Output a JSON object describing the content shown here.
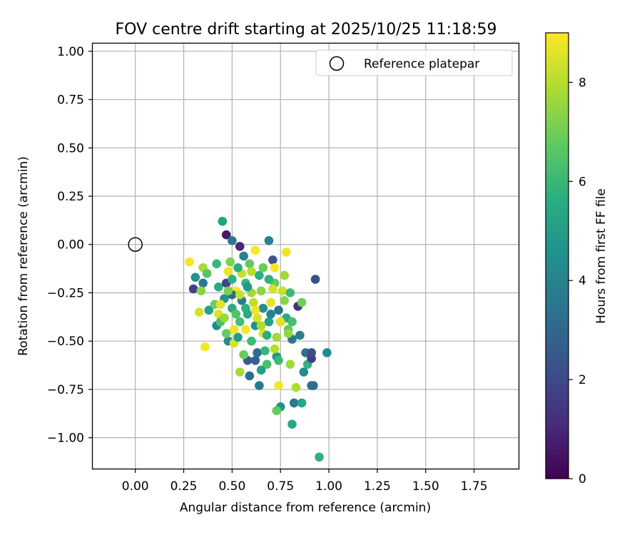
{
  "chart_data": {
    "type": "scatter",
    "title": "FOV centre drift starting at 2025/10/25 11:18:59",
    "xlabel": "Angular distance from reference (arcmin)",
    "ylabel": "Rotation from reference (arcmin)",
    "xlim": [
      -0.22,
      1.98
    ],
    "ylim": [
      -1.16,
      1.04
    ],
    "xticks": [
      0.0,
      0.25,
      0.5,
      0.75,
      1.0,
      1.25,
      1.5,
      1.75
    ],
    "xtick_labels": [
      "0.00",
      "0.25",
      "0.50",
      "0.75",
      "1.00",
      "1.25",
      "1.50",
      "1.75"
    ],
    "yticks": [
      1.0,
      0.75,
      0.5,
      0.25,
      0.0,
      -0.25,
      -0.5,
      -0.75,
      -1.0
    ],
    "ytick_labels": [
      "1.00",
      "0.75",
      "0.50",
      "0.25",
      "0.00",
      "−0.25",
      "−0.50",
      "−0.75",
      "−1.00"
    ],
    "grid": true,
    "legend": {
      "location": "top-right",
      "entries": [
        {
          "label": "Reference platepar",
          "marker": "open-circle"
        }
      ]
    },
    "reference_point": {
      "x": 0.0,
      "y": 0.0
    },
    "colorbar": {
      "label": "Hours from first FF file",
      "range": [
        0,
        9
      ],
      "ticks": [
        0,
        2,
        4,
        6,
        8
      ],
      "tick_labels": [
        "0",
        "2",
        "4",
        "6",
        "8"
      ],
      "colormap": "viridis"
    },
    "points": [
      [
        0.45,
        0.12,
        5.2
      ],
      [
        0.47,
        0.05,
        0.6
      ],
      [
        0.5,
        0.02,
        3.6
      ],
      [
        0.54,
        -0.01,
        1.0
      ],
      [
        0.69,
        0.02,
        4.0
      ],
      [
        0.93,
        -0.18,
        2.2
      ],
      [
        0.78,
        -0.04,
        8.8
      ],
      [
        0.62,
        -0.03,
        8.9
      ],
      [
        0.28,
        -0.09,
        8.9
      ],
      [
        0.3,
        -0.23,
        1.8
      ],
      [
        0.31,
        -0.17,
        4.6
      ],
      [
        0.35,
        -0.12,
        7.8
      ],
      [
        0.37,
        -0.15,
        6.6
      ],
      [
        0.35,
        -0.2,
        3.6
      ],
      [
        0.34,
        -0.24,
        7.4
      ],
      [
        0.33,
        -0.35,
        8.4
      ],
      [
        0.38,
        -0.34,
        5.2
      ],
      [
        0.36,
        -0.53,
        8.9
      ],
      [
        0.42,
        -0.1,
        6.0
      ],
      [
        0.43,
        -0.22,
        5.5
      ],
      [
        0.41,
        -0.31,
        7.0
      ],
      [
        0.43,
        -0.36,
        8.5
      ],
      [
        0.42,
        -0.42,
        4.2
      ],
      [
        0.44,
        -0.4,
        6.4
      ],
      [
        0.46,
        -0.28,
        4.6
      ],
      [
        0.47,
        -0.2,
        1.8
      ],
      [
        0.48,
        -0.14,
        8.8
      ],
      [
        0.49,
        -0.09,
        7.2
      ],
      [
        0.5,
        -0.18,
        5.8
      ],
      [
        0.48,
        -0.5,
        4.2
      ],
      [
        0.5,
        -0.33,
        5.5
      ],
      [
        0.51,
        -0.51,
        8.5
      ],
      [
        0.52,
        -0.24,
        8.9
      ],
      [
        0.53,
        -0.48,
        5.0
      ],
      [
        0.54,
        -0.4,
        6.3
      ],
      [
        0.55,
        -0.29,
        3.9
      ],
      [
        0.56,
        -0.06,
        4.0
      ],
      [
        0.55,
        -0.15,
        8.2
      ],
      [
        0.57,
        -0.2,
        6.0
      ],
      [
        0.58,
        -0.6,
        2.6
      ],
      [
        0.59,
        -0.1,
        6.8
      ],
      [
        0.57,
        -0.44,
        8.9
      ],
      [
        0.58,
        -0.36,
        5.5
      ],
      [
        0.59,
        -0.68,
        3.2
      ],
      [
        0.6,
        -0.25,
        7.7
      ],
      [
        0.61,
        -0.3,
        8.1
      ],
      [
        0.62,
        -0.42,
        4.6
      ],
      [
        0.6,
        -0.5,
        6.2
      ],
      [
        0.62,
        -0.6,
        2.8
      ],
      [
        0.63,
        -0.56,
        3.2
      ],
      [
        0.64,
        -0.16,
        5.6
      ],
      [
        0.65,
        -0.24,
        7.4
      ],
      [
        0.66,
        -0.33,
        4.4
      ],
      [
        0.66,
        -0.46,
        8.6
      ],
      [
        0.64,
        -0.73,
        3.6
      ],
      [
        0.68,
        -0.62,
        6.4
      ],
      [
        0.69,
        -0.4,
        5.2
      ],
      [
        0.7,
        -0.3,
        8.7
      ],
      [
        0.71,
        -0.08,
        2.4
      ],
      [
        0.72,
        -0.12,
        8.9
      ],
      [
        0.72,
        -0.2,
        6.8
      ],
      [
        0.73,
        -0.48,
        7.7
      ],
      [
        0.74,
        -0.34,
        3.4
      ],
      [
        0.73,
        -0.58,
        4.7
      ],
      [
        0.74,
        -0.73,
        8.9
      ],
      [
        0.75,
        -0.84,
        4.5
      ],
      [
        0.76,
        -0.24,
        8.3
      ],
      [
        0.77,
        -0.16,
        7.7
      ],
      [
        0.78,
        -0.38,
        5.4
      ],
      [
        0.79,
        -0.44,
        6.7
      ],
      [
        0.8,
        -0.25,
        6.1
      ],
      [
        0.8,
        -0.62,
        7.7
      ],
      [
        0.81,
        -0.49,
        3.5
      ],
      [
        0.82,
        -0.82,
        3.6
      ],
      [
        0.83,
        -0.74,
        7.9
      ],
      [
        0.84,
        -0.32,
        1.3
      ],
      [
        0.85,
        -0.47,
        3.9
      ],
      [
        0.86,
        -0.3,
        7.0
      ],
      [
        0.86,
        -0.82,
        5.3
      ],
      [
        0.87,
        -0.66,
        4.4
      ],
      [
        0.88,
        -0.56,
        3.3
      ],
      [
        0.89,
        -0.62,
        5.8
      ],
      [
        0.91,
        -0.59,
        1.6
      ],
      [
        0.91,
        -0.56,
        2.1
      ],
      [
        0.91,
        -0.73,
        3.6
      ],
      [
        0.92,
        -0.73,
        3.2
      ],
      [
        0.99,
        -0.56,
        4.3
      ],
      [
        0.73,
        -0.86,
        6.8
      ],
      [
        0.81,
        -0.93,
        5.4
      ],
      [
        0.95,
        -1.1,
        5.8
      ],
      [
        0.54,
        -0.66,
        7.8
      ],
      [
        0.46,
        -0.38,
        7.6
      ],
      [
        0.52,
        -0.36,
        6.5
      ],
      [
        0.58,
        -0.22,
        4.9
      ],
      [
        0.63,
        -0.38,
        8.5
      ],
      [
        0.67,
        -0.55,
        5.9
      ],
      [
        0.7,
        -0.36,
        4.1
      ],
      [
        0.77,
        -0.29,
        7.3
      ],
      [
        0.81,
        -0.4,
        6.3
      ],
      [
        0.71,
        -0.23,
        8.4
      ],
      [
        0.65,
        -0.65,
        5.1
      ],
      [
        0.56,
        -0.57,
        6.9
      ],
      [
        0.5,
        -0.26,
        3.0
      ],
      [
        0.44,
        -0.31,
        8.6
      ],
      [
        0.6,
        -0.14,
        8.0
      ],
      [
        0.53,
        -0.12,
        5.6
      ],
      [
        0.48,
        -0.24,
        7.2
      ],
      [
        0.69,
        -0.18,
        5.8
      ],
      [
        0.66,
        -0.12,
        6.9
      ],
      [
        0.75,
        -0.4,
        8.6
      ],
      [
        0.62,
        -0.34,
        8.8
      ],
      [
        0.57,
        -0.33,
        5.7
      ],
      [
        0.54,
        -0.26,
        8.2
      ],
      [
        0.47,
        -0.46,
        6.9
      ],
      [
        0.51,
        -0.44,
        8.8
      ],
      [
        0.74,
        -0.6,
        6.1
      ],
      [
        0.68,
        -0.47,
        5.6
      ],
      [
        0.72,
        -0.54,
        8.0
      ],
      [
        0.79,
        -0.46,
        7.5
      ],
      [
        0.65,
        -0.42,
        7.9
      ]
    ]
  }
}
